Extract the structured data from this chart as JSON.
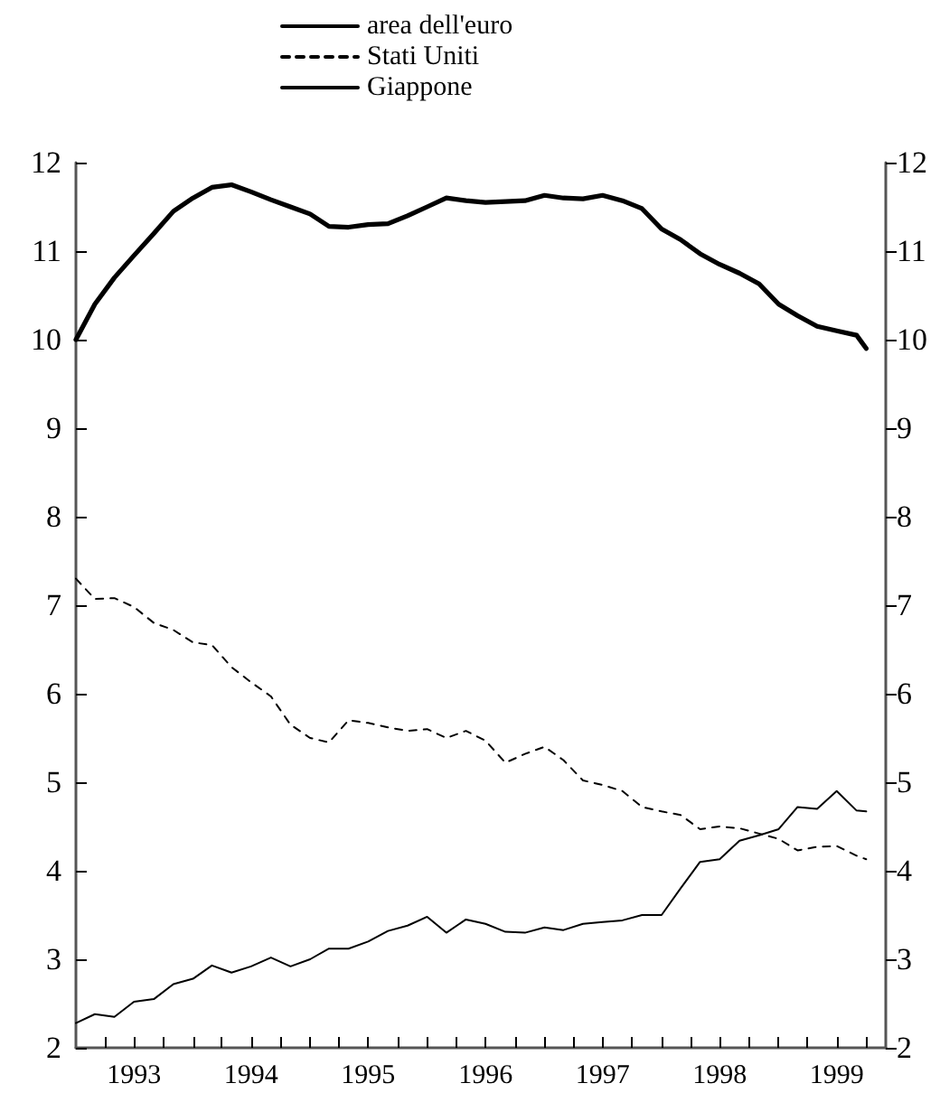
{
  "chart_data": {
    "type": "line",
    "x": [
      "1993-01",
      "1993-03",
      "1993-05",
      "1993-07",
      "1993-09",
      "1993-11",
      "1994-01",
      "1994-03",
      "1994-05",
      "1994-07",
      "1994-09",
      "1994-11",
      "1995-01",
      "1995-03",
      "1995-05",
      "1995-07",
      "1995-09",
      "1995-11",
      "1996-01",
      "1996-03",
      "1996-05",
      "1996-07",
      "1996-09",
      "1996-11",
      "1997-01",
      "1997-03",
      "1997-05",
      "1997-07",
      "1997-09",
      "1997-11",
      "1998-01",
      "1998-03",
      "1998-05",
      "1998-07",
      "1998-09",
      "1998-11",
      "1999-01",
      "1999-03",
      "1999-05",
      "1999-07",
      "1999-09",
      "1999-10"
    ],
    "series": [
      {
        "name": "area dell'euro",
        "color": "#000000",
        "line_style": "solid",
        "values": [
          10.0,
          10.4,
          10.7,
          10.95,
          11.2,
          11.45,
          11.6,
          11.72,
          11.75,
          11.67,
          11.58,
          11.5,
          11.42,
          11.28,
          11.27,
          11.3,
          11.31,
          11.4,
          11.5,
          11.6,
          11.57,
          11.55,
          11.56,
          11.57,
          11.63,
          11.6,
          11.59,
          11.63,
          11.57,
          11.48,
          11.25,
          11.13,
          10.97,
          10.85,
          10.75,
          10.63,
          10.4,
          10.27,
          10.15,
          10.1,
          10.05,
          9.9
        ]
      },
      {
        "name": "Stati Uniti",
        "color": "#000000",
        "line_style": "dashed",
        "values": [
          7.3,
          7.07,
          7.08,
          6.98,
          6.8,
          6.72,
          6.58,
          6.55,
          6.3,
          6.13,
          5.97,
          5.65,
          5.5,
          5.45,
          5.7,
          5.67,
          5.62,
          5.58,
          5.6,
          5.5,
          5.58,
          5.47,
          5.22,
          5.32,
          5.4,
          5.25,
          5.02,
          4.97,
          4.9,
          4.72,
          4.67,
          4.63,
          4.47,
          4.5,
          4.48,
          4.42,
          4.36,
          4.23,
          4.27,
          4.28,
          4.17,
          4.13
        ]
      },
      {
        "name": "Giappone",
        "color": "#000000",
        "line_style": "solid",
        "values": [
          2.28,
          2.38,
          2.35,
          2.52,
          2.55,
          2.72,
          2.78,
          2.93,
          2.85,
          2.92,
          3.02,
          2.92,
          3.0,
          3.12,
          3.12,
          3.2,
          3.32,
          3.38,
          3.48,
          3.3,
          3.45,
          3.4,
          3.31,
          3.3,
          3.36,
          3.33,
          3.4,
          3.42,
          3.44,
          3.5,
          3.5,
          3.8,
          4.1,
          4.13,
          4.34,
          4.4,
          4.47,
          4.72,
          4.7,
          4.9,
          4.68,
          4.67
        ]
      }
    ],
    "xlim": [
      "1993-01",
      "1999-12"
    ],
    "xticks": [
      {
        "value": "1993-04",
        "label": null
      },
      {
        "value": "1993-07",
        "label": "1993"
      },
      {
        "value": "1993-10",
        "label": null
      },
      {
        "value": "1994-01",
        "label": null
      },
      {
        "value": "1994-04",
        "label": null
      },
      {
        "value": "1994-07",
        "label": "1994"
      },
      {
        "value": "1994-10",
        "label": null
      },
      {
        "value": "1995-01",
        "label": null
      },
      {
        "value": "1995-04",
        "label": null
      },
      {
        "value": "1995-07",
        "label": "1995"
      },
      {
        "value": "1995-10",
        "label": null
      },
      {
        "value": "1996-01",
        "label": null
      },
      {
        "value": "1996-04",
        "label": null
      },
      {
        "value": "1996-07",
        "label": "1996"
      },
      {
        "value": "1996-10",
        "label": null
      },
      {
        "value": "1997-01",
        "label": null
      },
      {
        "value": "1997-04",
        "label": null
      },
      {
        "value": "1997-07",
        "label": "1997"
      },
      {
        "value": "1997-10",
        "label": null
      },
      {
        "value": "1998-01",
        "label": null
      },
      {
        "value": "1998-04",
        "label": null
      },
      {
        "value": "1998-07",
        "label": "1998"
      },
      {
        "value": "1998-10",
        "label": null
      },
      {
        "value": "1999-01",
        "label": null
      },
      {
        "value": "1999-04",
        "label": null
      },
      {
        "value": "1999-07",
        "label": "1999"
      },
      {
        "value": "1999-10",
        "label": null
      }
    ],
    "ylim": [
      2,
      12
    ],
    "yticks": [
      2,
      3,
      4,
      5,
      6,
      7,
      8,
      9,
      10,
      11,
      12
    ],
    "y2lim": [
      2,
      12
    ],
    "y2ticks": [
      2,
      3,
      4,
      5,
      6,
      7,
      8,
      9,
      10,
      11,
      12
    ],
    "grid": false,
    "legend": "top",
    "marker": "none"
  }
}
